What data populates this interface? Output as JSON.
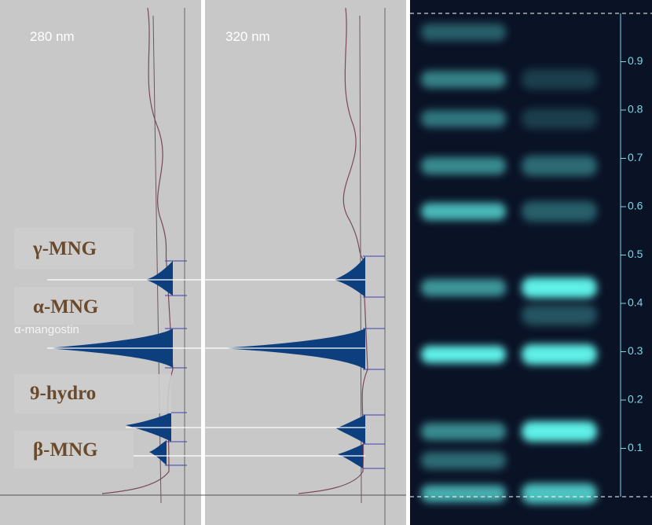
{
  "panels": [
    {
      "label": "280 nm"
    },
    {
      "label": "320 nm"
    }
  ],
  "faint_label": "α-mangostin",
  "compounds": [
    {
      "label": "γ-MNG"
    },
    {
      "label": "α-MNG"
    },
    {
      "label": "9-hydro"
    },
    {
      "label": "β-MNG"
    }
  ],
  "rf_axis": {
    "ylim": [
      0,
      1
    ],
    "yticks": [
      0.1,
      0.2,
      0.3,
      0.4,
      0.5,
      0.6,
      0.7,
      0.8,
      0.9
    ]
  }
}
